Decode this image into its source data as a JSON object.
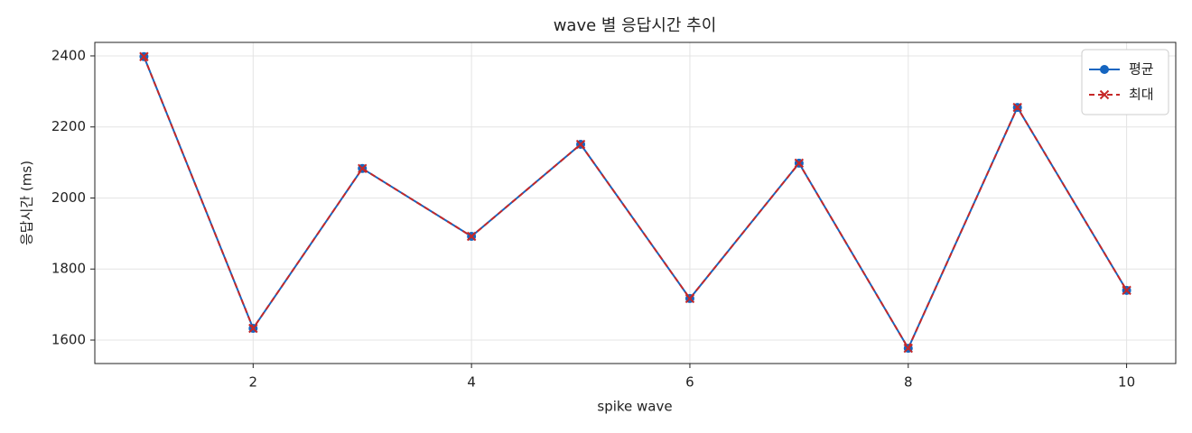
{
  "chart_data": {
    "type": "line",
    "title": "wave 별 응답시간 추이",
    "xlabel": "spike wave",
    "ylabel": "응답시간 (ms)",
    "x": [
      1,
      2,
      3,
      4,
      5,
      6,
      7,
      8,
      9,
      10
    ],
    "series": [
      {
        "name": "평균",
        "color": "#1565c0",
        "marker": "o",
        "dash": false,
        "values": [
          2398,
          1633,
          2083,
          1892,
          2151,
          1717,
          2098,
          1577,
          2255,
          1740
        ]
      },
      {
        "name": "최대",
        "color": "#c62828",
        "marker": "x",
        "dash": true,
        "values": [
          2398,
          1633,
          2083,
          1892,
          2151,
          1717,
          2098,
          1577,
          2255,
          1740
        ]
      }
    ],
    "xlim": [
      0.55,
      10.45
    ],
    "xticks": [
      2,
      4,
      6,
      8,
      10
    ],
    "ylim": [
      1534,
      2438
    ],
    "yticks": [
      1600,
      1800,
      2000,
      2200,
      2400
    ],
    "grid": true,
    "legend": "upper right"
  }
}
